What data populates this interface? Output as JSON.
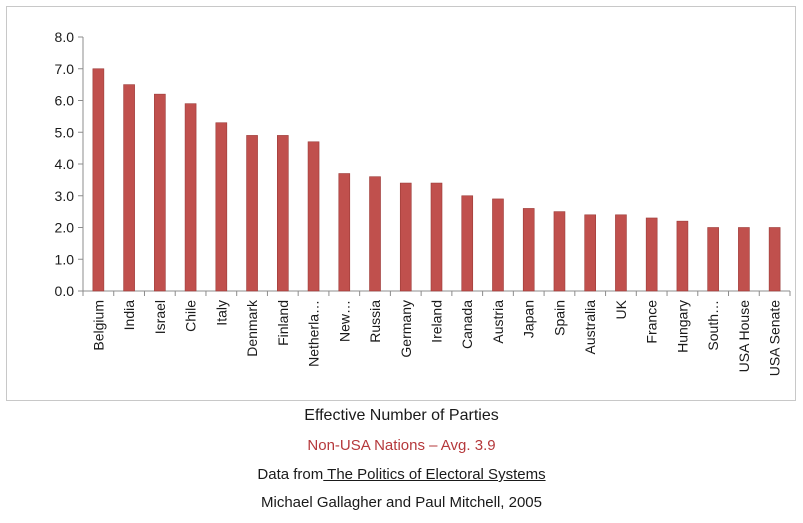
{
  "chart_data": {
    "type": "bar",
    "categories": [
      "Belgium",
      "India",
      "Israel",
      "Chile",
      "Italy",
      "Denmark",
      "Finland",
      "Netherla…",
      "New…",
      "Russia",
      "Germany",
      "Ireland",
      "Canada",
      "Austria",
      "Japan",
      "Spain",
      "Australia",
      "UK",
      "France",
      "Hungary",
      "South…",
      "USA House",
      "USA Senate"
    ],
    "values": [
      7.0,
      6.5,
      6.2,
      5.9,
      5.3,
      4.9,
      4.9,
      4.7,
      3.7,
      3.6,
      3.4,
      3.4,
      3.0,
      2.9,
      2.6,
      2.5,
      2.4,
      2.4,
      2.3,
      2.2,
      2.0,
      2.0,
      2.0
    ],
    "ylim": [
      0,
      8
    ],
    "yticks": [
      "0.0",
      "1.0",
      "2.0",
      "3.0",
      "4.0",
      "5.0",
      "6.0",
      "7.0",
      "8.0"
    ],
    "grid": false,
    "bar_color": "#c0504d",
    "bar_edge_color": "#9b3a37"
  },
  "captions": {
    "title": "Effective Number of Parties",
    "subtitle": "Non-USA Nations – Avg. 3.9",
    "subtitle_color": "#b5383b",
    "source_prefix": "Data from",
    "source_book": " The Politics of Electoral Systems",
    "authors": "Michael Gallagher and Paul Mitchell, 2005"
  }
}
